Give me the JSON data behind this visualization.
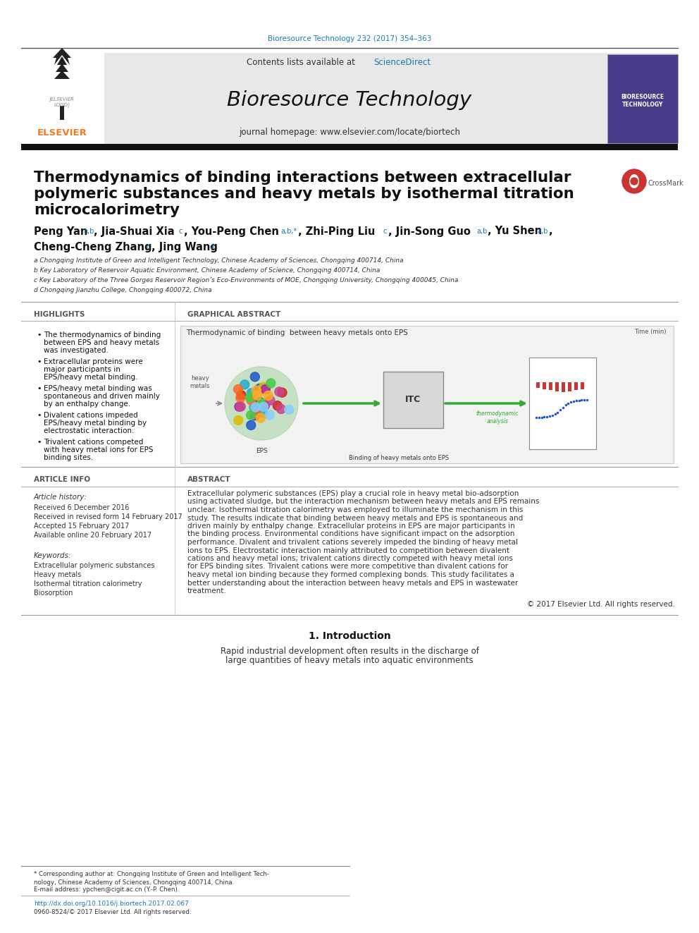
{
  "journal_ref": "Bioresource Technology 232 (2017) 354–363",
  "journal_ref_color": "#1a7aab",
  "contents_text": "Contents lists available at ",
  "sciencedirect_text": "ScienceDirect",
  "sciencedirect_color": "#1a7aab",
  "journal_name": "Bioresource Technology",
  "journal_homepage": "journal homepage: www.elsevier.com/locate/biortech",
  "title_line1": "Thermodynamics of binding interactions between extracellular",
  "title_line2": "polymeric substances and heavy metals by isothermal titration",
  "title_line3": "microcalorimetry",
  "affil_a": "a Chongqing Institute of Green and Intelligent Technology, Chinese Academy of Sciences, Chongqing 400714, China",
  "affil_b": "b Key Laboratory of Reservoir Aquatic Environment, Chinese Academy of Science, Chongqing 400714, China",
  "affil_c": "c Key Laboratory of the Three Gorges Reservoir Region’s Eco-Environments of MOE, Chongqing University, Chongqing 400045, China",
  "affil_d": "d Chongqing Jianzhu College, Chongqing 400072, China",
  "highlights_title": "HIGHLIGHTS",
  "highlights": [
    "The thermodynamics of binding between EPS and heavy metals was investigated.",
    "Extracellular proteins were major participants in EPS/heavy metal binding.",
    "EPS/heavy metal binding was spontaneous and driven mainly by an enthalpy change.",
    "Divalent cations impeded EPS/heavy metal binding by electrostatic interaction.",
    "Trivalent cations competed with heavy metal ions for EPS binding sites."
  ],
  "graphical_abstract_title": "GRAPHICAL ABSTRACT",
  "graphical_abstract_caption": "Thermodynamic of binding  between heavy metals onto EPS",
  "article_info_title": "ARTICLE INFO",
  "article_history_label": "Article history:",
  "received1": "Received 6 December 2016",
  "received2": "Received in revised form 14 February 2017",
  "accepted": "Accepted 15 February 2017",
  "available": "Available online 20 February 2017",
  "keywords_label": "Keywords:",
  "keywords": [
    "Extracellular polymeric substances",
    "Heavy metals",
    "Isothermal titration calorimetry",
    "Biosorption"
  ],
  "abstract_title": "ABSTRACT",
  "abstract_text": "Extracellular polymeric substances (EPS) play a crucial role in heavy metal bio-adsorption using activated sludge, but the interaction mechanism between heavy metals and EPS remains unclear. Isothermal titration calorimetry was employed to illuminate the mechanism in this study. The results indicate that binding between heavy metals and EPS is spontaneous and driven mainly by enthalpy change. Extracellular proteins in EPS are major participants in the binding process. Environmental conditions have significant impact on the adsorption performance. Divalent and trivalent cations severely impeded the binding of heavy metal ions to EPS. Electrostatic interaction mainly attributed to competition between divalent cations and heavy metal ions; trivalent cations directly competed with heavy metal ions for EPS binding sites. Trivalent cations were more competitive than divalent cations for heavy metal ion binding because they formed complexing bonds. This study facilitates a better understanding about the interaction between heavy metals and EPS in wastewater treatment.",
  "copyright": "© 2017 Elsevier Ltd. All rights reserved.",
  "intro_section": "1. Introduction",
  "intro_text1": "Rapid industrial development often results in the discharge of",
  "intro_text2": "large quantities of heavy metals into aquatic environments",
  "footer_note1": "* Corresponding author at: Chongqing Institute of Green and Intelligent Tech-",
  "footer_note2": "nology, Chinese Academy of Sciences, Chongqing 400714, China.",
  "footer_email": "E-mail address: ypchen@cigit.ac.cn (Y.-P. Chen).",
  "doi": "http://dx.doi.org/10.1016/j.biortech.2017.02.067",
  "issn": "0960-8524/© 2017 Elsevier Ltd. All rights reserved.",
  "bg_color": "#ffffff",
  "header_bg": "#e8e8e8",
  "elsevier_orange": "#f47920",
  "sciencedirect_color2": "#1a7aab"
}
